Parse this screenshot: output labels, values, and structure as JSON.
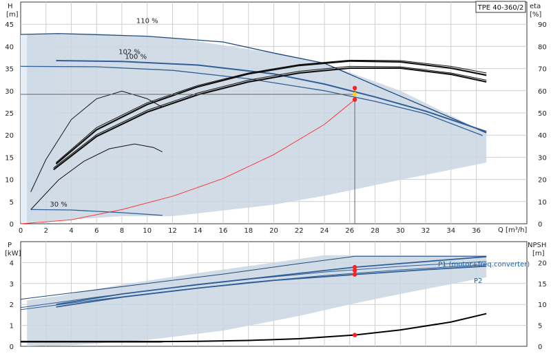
{
  "chart_data": [
    {
      "type": "line",
      "title": "TPE 40-360/2",
      "xlabel": "Q [m³/h]",
      "ylabel": "H",
      "ylabel_unit": "[m]",
      "ylabel_right": "eta",
      "ylabel_right_unit": "[%]",
      "xlim": [
        0,
        40
      ],
      "ylim": [
        0,
        50
      ],
      "ylim_right": [
        0,
        100
      ],
      "x_ticks": [
        "0",
        "2",
        "4",
        "6",
        "8",
        "10",
        "12",
        "14",
        "16",
        "18",
        "20",
        "22",
        "24",
        "26",
        "28",
        "30",
        "32",
        "34",
        "36"
      ],
      "y_ticks": [
        "0",
        "5",
        "10",
        "15",
        "20",
        "25",
        "30",
        "35",
        "40",
        "45"
      ],
      "y_ticks_right": [
        "0",
        "10",
        "20",
        "30",
        "40",
        "50",
        "60",
        "70",
        "80",
        "90"
      ],
      "grid": true,
      "curve_labels": [
        "110 %",
        "102 %",
        "100 %",
        "30 %"
      ],
      "operating_point": {
        "q": 26.4,
        "h": 28.0,
        "h_alt": 30.6
      },
      "guide_h": 29.2,
      "colors": {
        "max": "#1e4a7a",
        "head": "#2f5f96",
        "eta": "#111111",
        "system": "#ff3333",
        "band": "#c9d6e3",
        "guide": "#666666"
      },
      "series": [
        {
          "name": "110 %",
          "x": [
            0,
            3,
            10,
            16,
            20,
            24,
            29,
            36.8
          ],
          "y": [
            42.7,
            42.9,
            42.3,
            41.0,
            38.5,
            36.2,
            30.0,
            20.5
          ]
        },
        {
          "name": "102 %",
          "x": [
            2.8,
            8,
            14,
            20,
            24,
            28,
            32,
            36.8
          ],
          "y": [
            36.8,
            36.6,
            35.8,
            33.8,
            31.5,
            28.6,
            25.4,
            20.8
          ]
        },
        {
          "name": "100 %",
          "x": [
            0,
            6,
            12,
            18,
            24,
            28,
            32,
            36.5
          ],
          "y": [
            35.5,
            35.4,
            34.6,
            32.7,
            30.0,
            27.6,
            24.8,
            19.9
          ]
        },
        {
          "name": "30 %",
          "x": [
            0.8,
            4,
            8,
            11.2
          ],
          "y": [
            3.2,
            3.1,
            2.5,
            1.9
          ]
        }
      ],
      "eta_curves": [
        {
          "x": [
            0.8,
            2,
            4,
            6,
            8,
            10,
            11.2
          ],
          "y": [
            7.2,
            14.5,
            23.5,
            28.2,
            29.9,
            28.2,
            26.3
          ]
        },
        {
          "x": [
            0.8,
            3,
            5,
            7,
            9,
            10.5,
            11.2
          ],
          "y": [
            3.2,
            9.9,
            14.1,
            16.9,
            18.0,
            17.2,
            16.2
          ]
        },
        {
          "x": [
            2.8,
            6,
            10,
            14,
            18,
            22,
            26,
            30,
            34,
            36.8
          ],
          "y": [
            13.8,
            21.7,
            27.3,
            31.2,
            34.0,
            35.9,
            36.9,
            36.8,
            35.5,
            34.0
          ]
        },
        {
          "x": [
            2.8,
            6,
            10,
            14,
            18,
            22,
            26,
            30,
            34,
            36.8
          ],
          "y": [
            13.5,
            21.2,
            26.9,
            30.9,
            33.8,
            35.7,
            36.7,
            36.5,
            35.1,
            33.5
          ]
        },
        {
          "x": [
            2.6,
            6,
            10,
            14,
            18,
            22,
            26,
            30,
            34,
            36.8
          ],
          "y": [
            12.6,
            20.1,
            25.6,
            29.5,
            32.4,
            34.4,
            35.5,
            35.4,
            34.0,
            32.4
          ]
        },
        {
          "x": [
            2.6,
            6,
            10,
            14,
            18,
            22,
            26,
            30,
            34,
            36.8
          ],
          "y": [
            12.2,
            19.7,
            25.2,
            29.1,
            32.0,
            34.0,
            35.1,
            35.1,
            33.7,
            32.0
          ]
        }
      ],
      "system_curve": {
        "x": [
          0,
          4,
          8,
          12,
          16,
          20,
          24,
          26.4
        ],
        "y": [
          0,
          0.9,
          3.2,
          6.2,
          10.2,
          15.6,
          22.4,
          28.0
        ]
      },
      "band": {
        "x": [
          0.5,
          2.8,
          6,
          12,
          20,
          24,
          30,
          36.8,
          36.8,
          30,
          24,
          20,
          12,
          8,
          0.5
        ],
        "y": [
          42.7,
          43.0,
          42.9,
          42.0,
          38.5,
          36.2,
          30.0,
          20.5,
          13.8,
          9.9,
          6.3,
          4.3,
          1.7,
          1.7,
          0.3
        ]
      }
    },
    {
      "type": "line",
      "xlabel": "",
      "ylabel": "P",
      "ylabel_unit": "[kW]",
      "ylabel_right": "NPSH",
      "ylabel_right_unit": "[m]",
      "xlim": [
        0,
        40
      ],
      "ylim": [
        0,
        5
      ],
      "ylim_right": [
        0,
        25
      ],
      "y_ticks": [
        "0",
        "1",
        "2",
        "3",
        "4"
      ],
      "y_ticks_right": [
        "0",
        "5",
        "10",
        "15",
        "20"
      ],
      "grid": true,
      "annotations": [
        "P1 (motor+freq.converter)",
        "P2"
      ],
      "operating_points": [
        {
          "q": 26.4,
          "p": 3.78
        },
        {
          "q": 26.4,
          "p": 3.62
        },
        {
          "q": 26.4,
          "p": 3.43
        }
      ],
      "npsh_point": {
        "q": 26.4,
        "npsh": 2.7
      },
      "series": [
        {
          "name": "P1 (motor+freq.converter)",
          "x": [
            2.8,
            8,
            14,
            20,
            26.4,
            32,
            36.8
          ],
          "y": [
            2.0,
            2.5,
            2.95,
            3.35,
            3.78,
            4.05,
            4.28
          ]
        },
        {
          "name": "P2",
          "x": [
            2.8,
            8,
            14,
            20,
            26.4,
            32,
            36.8
          ],
          "y": [
            1.88,
            2.35,
            2.78,
            3.15,
            3.43,
            3.66,
            3.83
          ]
        },
        {
          "x": [
            0,
            4,
            10,
            16,
            22,
            26.4,
            32,
            36.8
          ],
          "y": [
            2.25,
            2.55,
            3.0,
            3.45,
            3.95,
            4.3,
            4.3,
            4.3
          ]
        },
        {
          "x": [
            0,
            6,
            12,
            18,
            24,
            30,
            36.8
          ],
          "y": [
            1.85,
            2.35,
            2.8,
            3.2,
            3.55,
            3.82,
            4.05
          ]
        },
        {
          "x": [
            0,
            6,
            12,
            18,
            24,
            30,
            36.8
          ],
          "y": [
            1.75,
            2.22,
            2.65,
            3.05,
            3.38,
            3.65,
            3.9
          ]
        }
      ],
      "npsh_curve": {
        "x": [
          0,
          4,
          10,
          14,
          18,
          22,
          26.4,
          30,
          34,
          36.8
        ],
        "npsh": [
          1.1,
          1.1,
          1.1,
          1.2,
          1.4,
          1.8,
          2.7,
          3.9,
          5.8,
          7.8
        ]
      },
      "band": {
        "x": [
          0.5,
          3,
          8,
          14,
          20,
          24,
          26.4,
          30,
          36.8,
          36.8,
          30,
          26.4,
          22,
          16,
          10,
          4,
          0.5
        ],
        "y": [
          2.2,
          2.4,
          2.95,
          3.5,
          4.0,
          4.35,
          4.35,
          4.35,
          4.35,
          3.3,
          2.5,
          2.05,
          1.45,
          0.75,
          0.3,
          0.05,
          0.0
        ]
      }
    }
  ]
}
